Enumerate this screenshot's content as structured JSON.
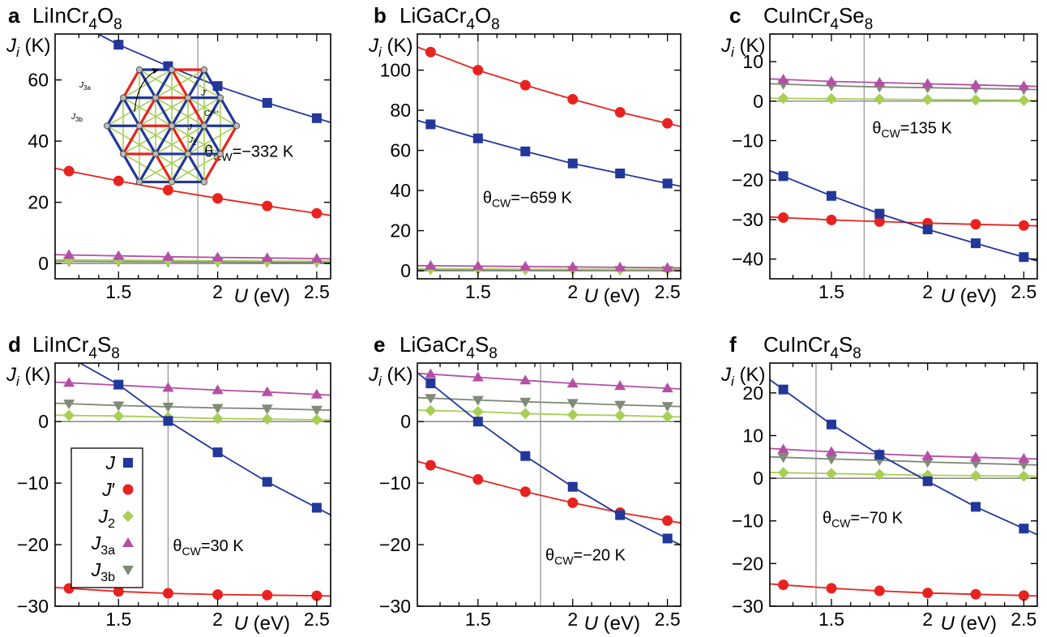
{
  "colors": {
    "J": "#22379a",
    "Jp": "#e8231f",
    "J2": "#a7cf56",
    "J3a": "#b54fa6",
    "J3b": "#7f8a77",
    "theta_line": "#999999"
  },
  "legend": [
    {
      "series": "J",
      "base": "J",
      "sub": "",
      "prime": false,
      "marker": "square"
    },
    {
      "series": "Jp",
      "base": "J",
      "sub": "",
      "prime": true,
      "marker": "circle"
    },
    {
      "series": "J2",
      "base": "J",
      "sub": "2",
      "prime": false,
      "marker": "diamond"
    },
    {
      "series": "J3a",
      "base": "J",
      "sub": "3a",
      "prime": false,
      "marker": "triangle-up"
    },
    {
      "series": "J3b",
      "base": "J",
      "sub": "3b",
      "prime": false,
      "marker": "triangle-down"
    }
  ],
  "inset_labels": {
    "J3a": "J3a",
    "Jp": "J′",
    "cr": "Cr³⁺",
    "J3b": "J3b",
    "J": "J",
    "J2": "J2"
  },
  "chart_data": [
    {
      "type": "line",
      "panel": "a",
      "title": "LiInCr4O8",
      "formula": [
        [
          "LiInCr",
          "",
          ""
        ],
        [
          "",
          "4",
          ""
        ],
        [
          "O",
          "",
          ""
        ],
        [
          "",
          "8",
          ""
        ]
      ],
      "ylabel": "J_i (K)",
      "xlabel": "U (eV)",
      "xlim": [
        1.18,
        2.57
      ],
      "ylim": [
        -5,
        75
      ],
      "yticks": [
        0,
        20,
        40,
        60
      ],
      "xticks": [
        1.5,
        2,
        2.5
      ],
      "theta_cw": {
        "U": 1.9,
        "label": "θCW=−332 K"
      },
      "x": [
        1.25,
        1.5,
        1.75,
        2.0,
        2.25,
        2.5
      ],
      "series": [
        {
          "key": "J",
          "values": [
            80,
            71.5,
            64.5,
            58,
            52.5,
            47.5
          ]
        },
        {
          "key": "Jp",
          "values": [
            30.2,
            27,
            24,
            21.3,
            18.8,
            16.4
          ]
        },
        {
          "key": "J2",
          "values": [
            1.2,
            1.1,
            1.0,
            0.9,
            0.8,
            0.8
          ]
        },
        {
          "key": "J3a",
          "values": [
            2.8,
            2.5,
            2.2,
            2.0,
            1.8,
            1.6
          ]
        },
        {
          "key": "J3b",
          "values": [
            0.7,
            0.6,
            0.5,
            0.5,
            0.4,
            0.4
          ]
        }
      ]
    },
    {
      "type": "line",
      "panel": "b",
      "title": "LiGaCr4O8",
      "formula": [
        [
          "LiGaCr",
          "",
          ""
        ],
        [
          "",
          "4",
          ""
        ],
        [
          "O",
          "",
          ""
        ],
        [
          "",
          "8",
          ""
        ]
      ],
      "ylabel": "J_i (K)",
      "xlabel": "U (eV)",
      "xlim": [
        1.18,
        2.57
      ],
      "ylim": [
        -4,
        118
      ],
      "yticks": [
        0,
        20,
        40,
        60,
        80,
        100
      ],
      "xticks": [
        1.5,
        2,
        2.5
      ],
      "theta_cw": {
        "U": 1.5,
        "label": "θCW=−659 K"
      },
      "x": [
        1.25,
        1.5,
        1.75,
        2.0,
        2.25,
        2.5
      ],
      "series": [
        {
          "key": "J",
          "values": [
            73,
            66,
            59.5,
            53.5,
            48.5,
            43.5
          ]
        },
        {
          "key": "Jp",
          "values": [
            109,
            100,
            92.5,
            85.5,
            79,
            73.5
          ]
        },
        {
          "key": "J2",
          "values": [
            1.0,
            0.9,
            0.8,
            0.8,
            0.7,
            0.7
          ]
        },
        {
          "key": "J3a",
          "values": [
            2.5,
            2.3,
            2.1,
            1.9,
            1.7,
            1.5
          ]
        },
        {
          "key": "J3b",
          "values": [
            0.6,
            0.5,
            0.5,
            0.4,
            0.4,
            0.3
          ]
        }
      ]
    },
    {
      "type": "line",
      "panel": "c",
      "title": "CuInCr4Se8",
      "formula": [
        [
          "CuInCr",
          "",
          ""
        ],
        [
          "",
          "4",
          ""
        ],
        [
          "Se",
          "",
          ""
        ],
        [
          "",
          "8",
          ""
        ]
      ],
      "ylabel": "J_i (K)",
      "xlabel": "U (eV)",
      "xlim": [
        1.18,
        2.57
      ],
      "ylim": [
        -45,
        17
      ],
      "yticks": [
        -40,
        -30,
        -20,
        -10,
        0,
        10
      ],
      "xticks": [
        1.5,
        2,
        2.5
      ],
      "theta_cw": {
        "U": 1.67,
        "label": "θCW=135 K"
      },
      "x": [
        1.25,
        1.5,
        1.75,
        2.0,
        2.25,
        2.5
      ],
      "series": [
        {
          "key": "J",
          "values": [
            -19,
            -24,
            -28.5,
            -32.5,
            -36,
            -39.5
          ]
        },
        {
          "key": "Jp",
          "values": [
            -29.5,
            -30.1,
            -30.5,
            -30.9,
            -31.2,
            -31.5
          ]
        },
        {
          "key": "J2",
          "values": [
            0.7,
            0.6,
            0.5,
            0.4,
            0.3,
            0.2
          ]
        },
        {
          "key": "J3a",
          "values": [
            5.5,
            5.0,
            4.7,
            4.4,
            4.1,
            3.8
          ]
        },
        {
          "key": "J3b",
          "values": [
            4.3,
            3.9,
            3.6,
            3.4,
            3.2,
            3.0
          ]
        }
      ]
    },
    {
      "type": "line",
      "panel": "d",
      "title": "LiInCr4S8",
      "formula": [
        [
          "LiInCr",
          "",
          ""
        ],
        [
          "",
          "4",
          ""
        ],
        [
          "S",
          "",
          ""
        ],
        [
          "",
          "8",
          ""
        ]
      ],
      "ylabel": "J_i (K)",
      "xlabel": "U (eV)",
      "xlim": [
        1.18,
        2.57
      ],
      "ylim": [
        -30,
        9.5
      ],
      "yticks": [
        -30,
        -20,
        -10,
        0
      ],
      "xticks": [
        1.5,
        2,
        2.5
      ],
      "theta_cw": {
        "U": 1.75,
        "label": "θCW=30 K"
      },
      "legend_in": true,
      "x": [
        1.25,
        1.5,
        1.75,
        2.0,
        2.25,
        2.5
      ],
      "series": [
        {
          "key": "J",
          "values": [
            10.5,
            6.0,
            0.1,
            -5,
            -9.8,
            -14
          ]
        },
        {
          "key": "Jp",
          "values": [
            -27.1,
            -27.6,
            -27.9,
            -28.1,
            -28.2,
            -28.3
          ]
        },
        {
          "key": "J2",
          "values": [
            1.0,
            0.9,
            0.7,
            0.5,
            0.4,
            0.3
          ]
        },
        {
          "key": "J3a",
          "values": [
            6.3,
            5.9,
            5.5,
            5.1,
            4.8,
            4.4
          ]
        },
        {
          "key": "J3b",
          "values": [
            2.9,
            2.6,
            2.4,
            2.2,
            2.1,
            1.9
          ]
        }
      ]
    },
    {
      "type": "line",
      "panel": "e",
      "title": "LiGaCr4S8",
      "formula": [
        [
          "LiGaCr",
          "",
          ""
        ],
        [
          "",
          "4",
          ""
        ],
        [
          "S",
          "",
          ""
        ],
        [
          "",
          "8",
          ""
        ]
      ],
      "ylabel": "J_i (K)",
      "xlabel": "U (eV)",
      "xlim": [
        1.18,
        2.57
      ],
      "ylim": [
        -30,
        9.5
      ],
      "yticks": [
        -30,
        -20,
        -10,
        0
      ],
      "xticks": [
        1.5,
        2,
        2.5
      ],
      "theta_cw": {
        "U": 1.83,
        "label": "θCW=−20 K"
      },
      "x": [
        1.25,
        1.5,
        1.75,
        2.0,
        2.25,
        2.5
      ],
      "series": [
        {
          "key": "J",
          "values": [
            6.2,
            0.0,
            -5.6,
            -10.6,
            -15.2,
            -19
          ]
        },
        {
          "key": "Jp",
          "values": [
            -7.1,
            -9.4,
            -11.4,
            -13.2,
            -14.8,
            -16.1
          ]
        },
        {
          "key": "J2",
          "values": [
            1.8,
            1.6,
            1.3,
            1.1,
            1.0,
            0.8
          ]
        },
        {
          "key": "J3a",
          "values": [
            7.7,
            7.2,
            6.7,
            6.2,
            5.8,
            5.4
          ]
        },
        {
          "key": "J3b",
          "values": [
            3.8,
            3.5,
            3.2,
            3.0,
            2.7,
            2.5
          ]
        }
      ]
    },
    {
      "type": "line",
      "panel": "f",
      "title": "CuInCr4S8",
      "formula": [
        [
          "CuInCr",
          "",
          ""
        ],
        [
          "",
          "4",
          ""
        ],
        [
          "S",
          "",
          ""
        ],
        [
          "",
          "8",
          ""
        ]
      ],
      "ylabel": "J_i (K)",
      "xlabel": "U (eV)",
      "xlim": [
        1.18,
        2.57
      ],
      "ylim": [
        -30,
        27
      ],
      "yticks": [
        -30,
        -20,
        -10,
        0,
        10,
        20
      ],
      "xticks": [
        1.5,
        2,
        2.5
      ],
      "theta_cw": {
        "U": 1.42,
        "label": "θCW=−70 K"
      },
      "x": [
        1.25,
        1.5,
        1.75,
        2.0,
        2.25,
        2.5
      ],
      "series": [
        {
          "key": "J",
          "values": [
            20.8,
            12.6,
            5.5,
            -0.7,
            -6.7,
            -11.8
          ]
        },
        {
          "key": "Jp",
          "values": [
            -25,
            -25.8,
            -26.4,
            -26.9,
            -27.2,
            -27.5
          ]
        },
        {
          "key": "J2",
          "values": [
            1.3,
            1.1,
            0.9,
            0.7,
            0.6,
            0.5
          ]
        },
        {
          "key": "J3a",
          "values": [
            6.8,
            6.2,
            5.7,
            5.2,
            4.9,
            4.6
          ]
        },
        {
          "key": "J3b",
          "values": [
            4.9,
            4.5,
            4.2,
            3.8,
            3.5,
            3.2
          ]
        }
      ]
    }
  ]
}
